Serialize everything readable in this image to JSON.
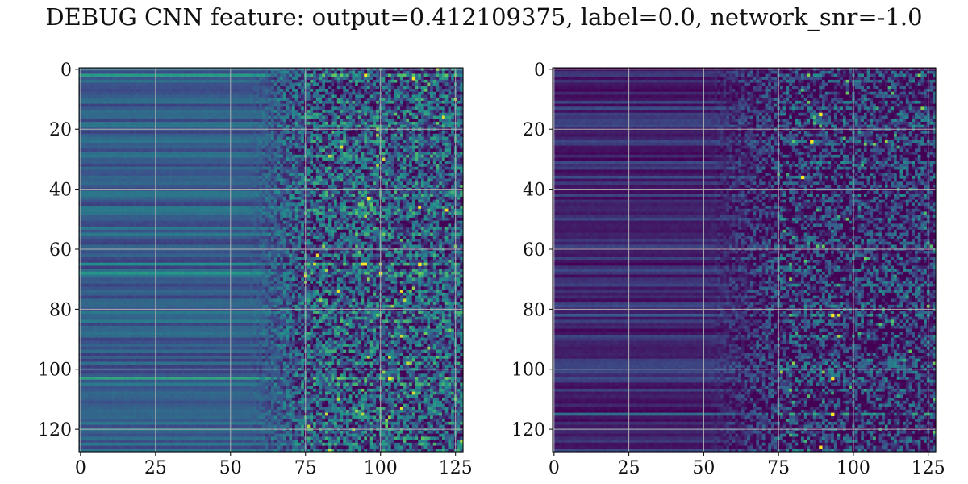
{
  "figure": {
    "title": "DEBUG CNN feature: output=0.412109375, label=0.0, network_snr=-1.0"
  },
  "chart_data": [
    {
      "type": "heatmap",
      "name": "left-panel",
      "title": "",
      "xlabel": "",
      "ylabel": "",
      "rows": 128,
      "cols": 128,
      "xlim": [
        -0.5,
        127.5
      ],
      "ylim": [
        127.5,
        -0.5
      ],
      "x_ticks": [
        0,
        25,
        50,
        75,
        100,
        125
      ],
      "y_ticks": [
        0,
        20,
        40,
        60,
        80,
        100,
        120
      ],
      "grid": true,
      "colormap": "viridis",
      "colormap_stops": [
        "#440154",
        "#3b528b",
        "#21918c",
        "#5ec962",
        "#fde725"
      ],
      "intensity_profile": {
        "flat_region_cols": [
          0,
          55
        ],
        "ramp_region_cols": [
          55,
          75
        ],
        "noisy_region_cols": [
          75,
          127
        ],
        "flat_level": 0.3,
        "noisy_mean": 0.28,
        "noisy_spread": 0.32
      },
      "bright_rows": [
        2,
        42,
        65,
        68,
        103
      ],
      "hot_spots": [
        [
          111,
          3
        ],
        [
          96,
          43
        ],
        [
          113,
          65
        ],
        [
          100,
          68
        ],
        [
          103,
          103
        ]
      ]
    },
    {
      "type": "heatmap",
      "name": "right-panel",
      "title": "",
      "xlabel": "",
      "ylabel": "",
      "rows": 128,
      "cols": 128,
      "xlim": [
        -0.5,
        127.5
      ],
      "ylim": [
        127.5,
        -0.5
      ],
      "x_ticks": [
        0,
        25,
        50,
        75,
        100,
        125
      ],
      "y_ticks": [
        0,
        20,
        40,
        60,
        80,
        100,
        120
      ],
      "grid": true,
      "colormap": "viridis",
      "colormap_stops": [
        "#440154",
        "#3b528b",
        "#21918c",
        "#5ec962",
        "#fde725"
      ],
      "intensity_profile": {
        "flat_region_cols": [
          0,
          50
        ],
        "ramp_region_cols": [
          50,
          75
        ],
        "noisy_region_cols": [
          75,
          127
        ],
        "flat_level": 0.12,
        "noisy_mean": 0.14,
        "noisy_spread": 0.3
      },
      "bright_rows": [
        24,
        36,
        82,
        103,
        115
      ],
      "hot_spots": [
        [
          89,
          15
        ],
        [
          86,
          24
        ],
        [
          83,
          36
        ],
        [
          93,
          82
        ],
        [
          93,
          103
        ],
        [
          93,
          115
        ],
        [
          89,
          126
        ]
      ]
    }
  ]
}
